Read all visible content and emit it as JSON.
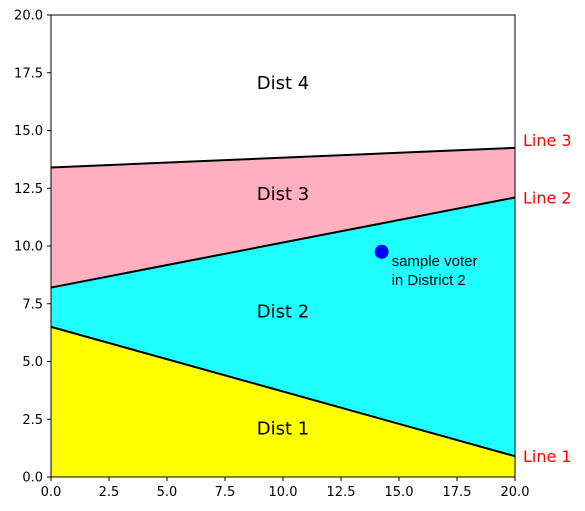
{
  "chart_data": {
    "type": "area",
    "xlim": [
      0,
      20
    ],
    "ylim": [
      0,
      20
    ],
    "grid": false,
    "x_ticks": [
      "0.0",
      "2.5",
      "5.0",
      "7.5",
      "10.0",
      "12.5",
      "15.0",
      "17.5",
      "20.0"
    ],
    "y_ticks": [
      "0.0",
      "2.5",
      "5.0",
      "7.5",
      "10.0",
      "12.5",
      "15.0",
      "17.5",
      "20.0"
    ],
    "lines": [
      {
        "name": "Line 1",
        "x": [
          0,
          20
        ],
        "y": [
          6.5,
          0.9
        ]
      },
      {
        "name": "Line 2",
        "x": [
          0,
          20
        ],
        "y": [
          8.2,
          12.1
        ]
      },
      {
        "name": "Line 3",
        "x": [
          0,
          20
        ],
        "y": [
          13.4,
          14.25
        ]
      }
    ],
    "regions": [
      {
        "name": "Dist 1",
        "color": "#ffff00",
        "label_x": 10.0,
        "label_y": 1.85
      },
      {
        "name": "Dist 2",
        "color": "#1fffff",
        "label_x": 10.0,
        "label_y": 6.9
      },
      {
        "name": "Dist 3",
        "color": "#ffb0c0",
        "label_x": 10.0,
        "label_y": 12.0
      },
      {
        "name": "Dist 4",
        "color": "#ffffff",
        "label_x": 10.0,
        "label_y": 16.8
      }
    ],
    "points": [
      {
        "x": 14.25,
        "y": 9.75,
        "color": "#0000ff",
        "annotation": [
          "sample voter",
          "in District 2"
        ]
      }
    ],
    "line_color": "#000000",
    "label_color": "#ff0000"
  }
}
